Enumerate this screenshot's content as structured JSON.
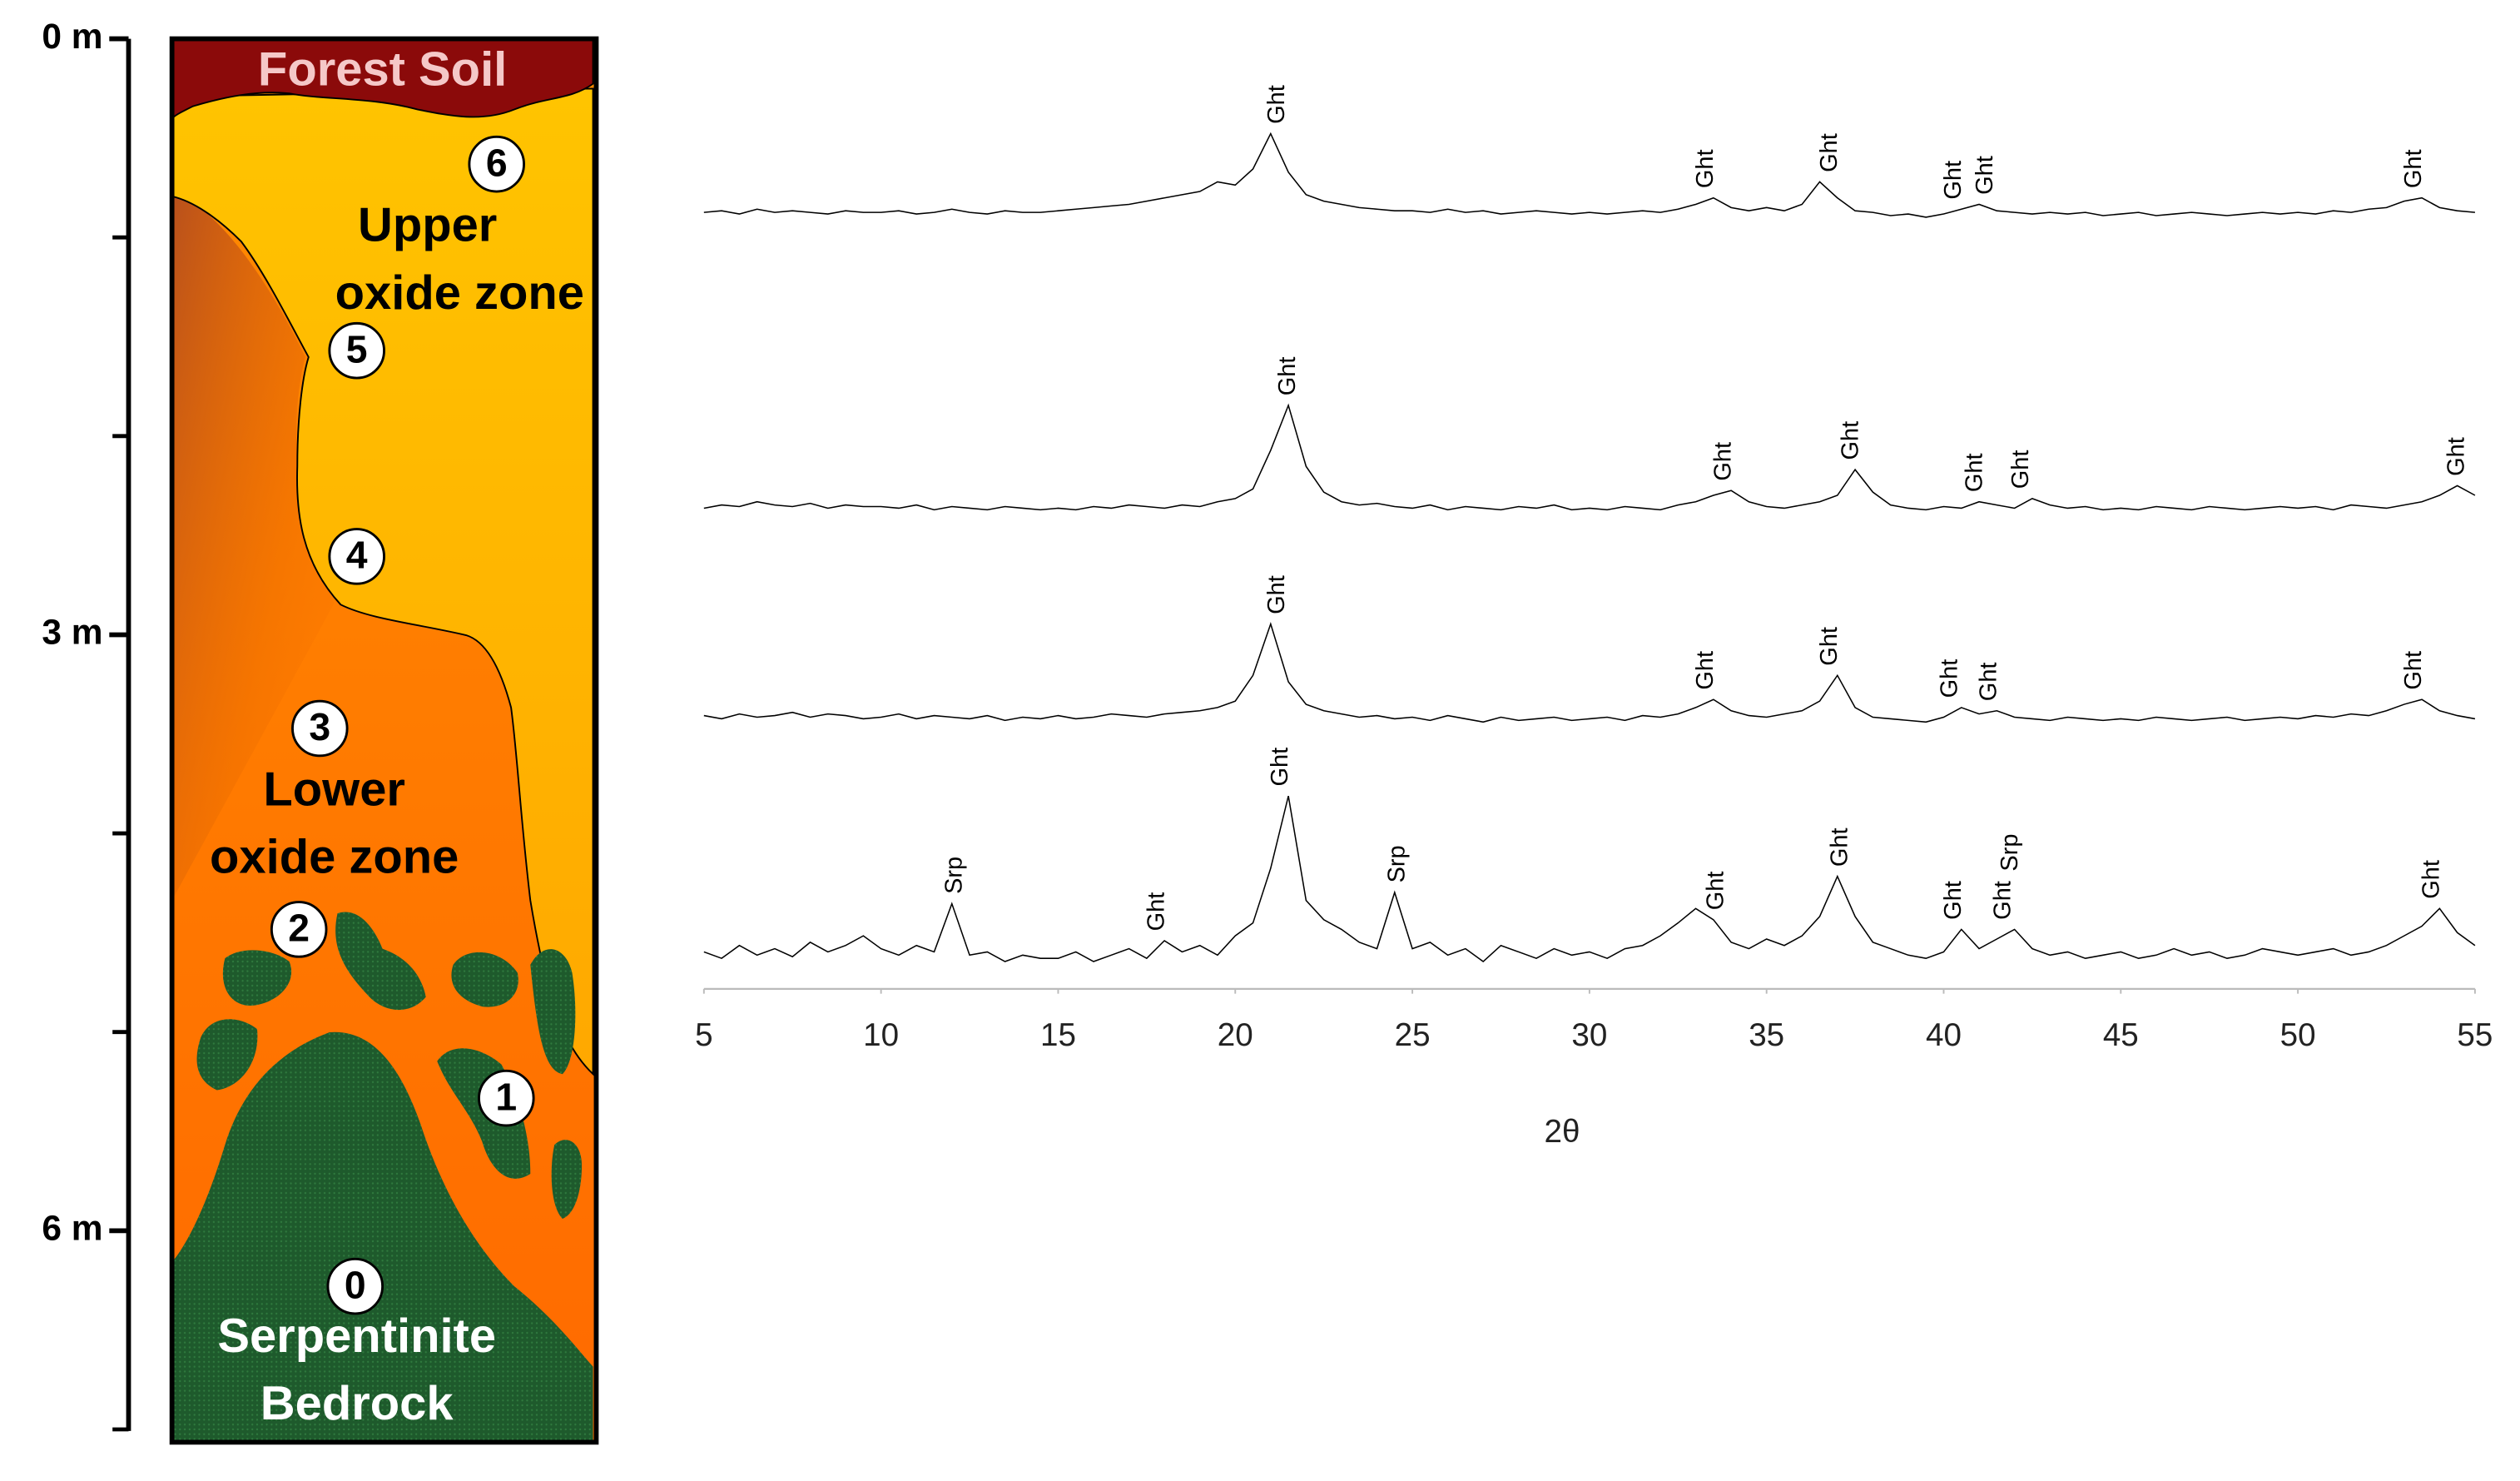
{
  "profile": {
    "depth_axis": {
      "ylim": [
        0,
        7
      ],
      "ticks": [
        {
          "value": 0,
          "label": "0 m"
        },
        {
          "value": 3,
          "label": "3 m"
        },
        {
          "value": 6,
          "label": "6 m"
        }
      ],
      "minor_ticks": [
        1,
        2,
        4,
        5,
        7
      ]
    },
    "zones": {
      "forest_soil": "Forest Soil",
      "upper": [
        "Upper",
        "oxide zone"
      ],
      "lower": [
        "Lower",
        "oxide zone"
      ],
      "bedrock": [
        "Serpentinite",
        "Bedrock"
      ]
    },
    "samples": [
      "0",
      "1",
      "2",
      "3",
      "4",
      "5",
      "6"
    ]
  },
  "chart_data": {
    "type": "line",
    "xlabel": "2θ",
    "xlim": [
      5,
      55
    ],
    "xticks": [
      5,
      10,
      15,
      20,
      25,
      30,
      35,
      40,
      45,
      50,
      55
    ],
    "x": [
      5,
      5.5,
      6,
      6.5,
      7,
      7.5,
      8,
      8.5,
      9,
      9.5,
      10,
      10.5,
      11,
      11.5,
      12,
      12.5,
      13,
      13.5,
      14,
      14.5,
      15,
      15.5,
      16,
      16.5,
      17,
      17.5,
      18,
      18.5,
      19,
      19.5,
      20,
      20.5,
      21,
      21.5,
      22,
      22.5,
      23,
      23.5,
      24,
      24.5,
      25,
      25.5,
      26,
      26.5,
      27,
      27.5,
      28,
      28.5,
      29,
      29.5,
      30,
      30.5,
      31,
      31.5,
      32,
      32.5,
      33,
      33.5,
      34,
      34.5,
      35,
      35.5,
      36,
      36.5,
      37,
      37.5,
      38,
      38.5,
      39,
      39.5,
      40,
      40.5,
      41,
      41.5,
      42,
      42.5,
      43,
      43.5,
      44,
      44.5,
      45,
      45.5,
      46,
      46.5,
      47,
      47.5,
      48,
      48.5,
      49,
      49.5,
      50,
      50.5,
      51,
      51.5,
      52,
      52.5,
      53,
      53.5,
      54,
      54.5,
      55
    ],
    "series": [
      {
        "color": "#000000",
        "values": [
          3,
          4,
          2,
          5,
          3,
          4,
          3,
          2,
          4,
          3,
          3,
          4,
          2,
          3,
          5,
          3,
          2,
          4,
          3,
          3,
          4,
          5,
          6,
          7,
          8,
          10,
          12,
          14,
          16,
          22,
          20,
          30,
          52,
          28,
          14,
          10,
          8,
          6,
          5,
          4,
          4,
          3,
          5,
          3,
          4,
          2,
          3,
          4,
          3,
          2,
          3,
          2,
          3,
          4,
          3,
          5,
          8,
          12,
          6,
          4,
          6,
          4,
          8,
          22,
          12,
          4,
          3,
          1,
          2,
          0,
          2,
          5,
          8,
          4,
          3,
          2,
          3,
          2,
          3,
          1,
          2,
          3,
          1,
          2,
          3,
          2,
          1,
          2,
          3,
          2,
          3,
          2,
          4,
          3,
          5,
          6,
          10,
          12,
          6,
          4,
          3
        ],
        "peak_labels": [
          {
            "text": "Ght",
            "x": 21.2
          },
          {
            "text": "Ght",
            "x": 33.3
          },
          {
            "text": "Ght",
            "x": 36.8
          },
          {
            "text": "Ght",
            "x": 40.3
          },
          {
            "text": "Ght",
            "x": 41.2
          },
          {
            "text": "Ght",
            "x": 53.3
          }
        ]
      },
      {
        "color": "#000000",
        "values": [
          4,
          6,
          5,
          8,
          6,
          5,
          7,
          4,
          6,
          5,
          5,
          4,
          6,
          3,
          5,
          4,
          3,
          5,
          4,
          3,
          4,
          3,
          5,
          4,
          6,
          5,
          4,
          6,
          5,
          8,
          10,
          16,
          40,
          68,
          30,
          14,
          8,
          6,
          7,
          5,
          4,
          6,
          3,
          5,
          4,
          3,
          5,
          4,
          6,
          3,
          4,
          3,
          5,
          4,
          3,
          6,
          8,
          12,
          15,
          8,
          5,
          4,
          6,
          8,
          12,
          28,
          14,
          6,
          4,
          3,
          5,
          4,
          8,
          6,
          4,
          10,
          6,
          4,
          5,
          3,
          4,
          3,
          5,
          4,
          3,
          5,
          4,
          3,
          4,
          5,
          4,
          5,
          3,
          6,
          5,
          4,
          6,
          8,
          12,
          18,
          12
        ],
        "peak_labels": [
          {
            "text": "Ght",
            "x": 21.5
          },
          {
            "text": "Ght",
            "x": 33.8
          },
          {
            "text": "Ght",
            "x": 37.4
          },
          {
            "text": "Ght",
            "x": 40.9
          },
          {
            "text": "Ght",
            "x": 42.2
          },
          {
            "text": "Ght",
            "x": 54.5
          }
        ]
      },
      {
        "color": "#000000",
        "values": [
          5,
          3,
          6,
          4,
          5,
          7,
          4,
          6,
          5,
          3,
          4,
          6,
          3,
          5,
          4,
          3,
          5,
          2,
          4,
          3,
          5,
          3,
          4,
          6,
          5,
          4,
          6,
          7,
          8,
          10,
          14,
          30,
          62,
          26,
          12,
          8,
          6,
          4,
          5,
          3,
          4,
          2,
          5,
          3,
          1,
          4,
          2,
          3,
          4,
          2,
          3,
          4,
          2,
          5,
          4,
          6,
          10,
          15,
          8,
          5,
          4,
          6,
          8,
          14,
          30,
          10,
          4,
          3,
          2,
          1,
          4,
          10,
          6,
          8,
          4,
          3,
          2,
          4,
          3,
          2,
          3,
          2,
          4,
          3,
          2,
          3,
          4,
          2,
          3,
          4,
          3,
          5,
          4,
          6,
          5,
          8,
          12,
          15,
          8,
          5,
          3
        ],
        "peak_labels": [
          {
            "text": "Ght",
            "x": 21.2
          },
          {
            "text": "Ght",
            "x": 33.3
          },
          {
            "text": "Ght",
            "x": 36.8
          },
          {
            "text": "Ght",
            "x": 40.2
          },
          {
            "text": "Ght",
            "x": 41.3
          },
          {
            "text": "Ght",
            "x": 53.3
          }
        ]
      },
      {
        "color": "#000000",
        "values": [
          8,
          4,
          12,
          6,
          10,
          5,
          14,
          8,
          12,
          18,
          10,
          6,
          12,
          8,
          38,
          6,
          8,
          2,
          6,
          4,
          4,
          8,
          2,
          6,
          10,
          4,
          15,
          8,
          12,
          6,
          18,
          26,
          60,
          105,
          40,
          28,
          22,
          14,
          10,
          45,
          10,
          14,
          6,
          10,
          2,
          12,
          8,
          4,
          10,
          6,
          8,
          4,
          10,
          12,
          18,
          26,
          35,
          28,
          14,
          10,
          16,
          12,
          18,
          30,
          55,
          30,
          14,
          10,
          6,
          4,
          8,
          22,
          10,
          16,
          22,
          10,
          6,
          8,
          4,
          6,
          8,
          4,
          6,
          10,
          6,
          8,
          4,
          6,
          10,
          8,
          6,
          8,
          10,
          6,
          8,
          12,
          18,
          24,
          35,
          20,
          12
        ],
        "peak_labels": [
          {
            "text": "Srp",
            "x": 12.1
          },
          {
            "text": "Ght",
            "x": 17.8
          },
          {
            "text": "Ght",
            "x": 21.3
          },
          {
            "text": "Srp",
            "x": 24.6
          },
          {
            "text": "Ght",
            "x": 33.6
          },
          {
            "text": "Ght",
            "x": 37.1
          },
          {
            "text": "Ght",
            "x": 40.3
          },
          {
            "text": "Ght",
            "x": 41.7
          },
          {
            "text": "Srp",
            "x": 41.9
          },
          {
            "text": "Ght",
            "x": 53.8
          }
        ]
      }
    ]
  }
}
